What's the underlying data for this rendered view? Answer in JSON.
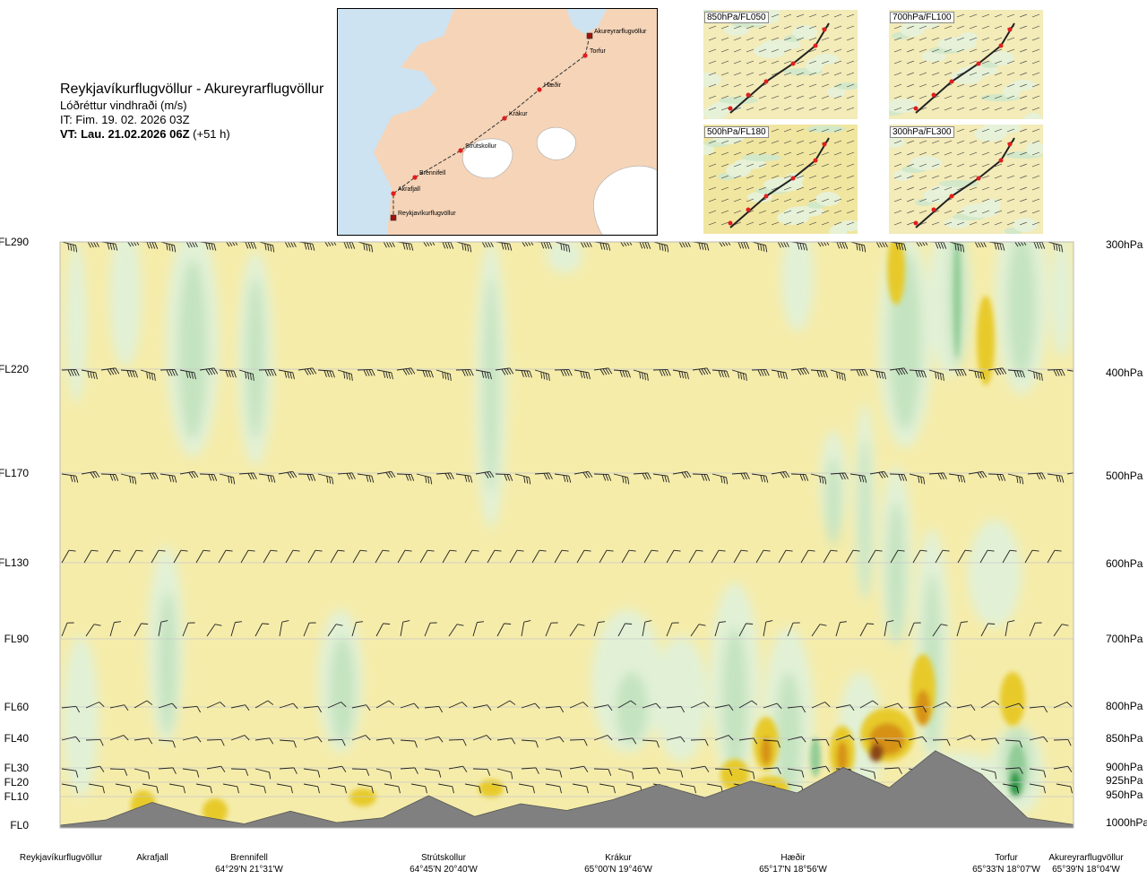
{
  "header": {
    "route": "Reykjavíkurflugvöllur - Akureyrarflugvöllur",
    "product": "Lóðréttur vindhraði (m/s)",
    "issue": "IT: Fim. 19. 02. 2026 03Z",
    "valid_bold": "VT: Lau. 21.02.2026 06Z",
    "valid_lead": "(+51 h)"
  },
  "map": {
    "waypoints": [
      {
        "name": "Akureyrarflugvöllur"
      },
      {
        "name": "Torfur"
      },
      {
        "name": "Hæðir"
      },
      {
        "name": "Krákur"
      },
      {
        "name": "Strútskollur"
      },
      {
        "name": "Brennifell"
      },
      {
        "name": "Akrafjall"
      },
      {
        "name": "Reykjavíkurflugvöllur"
      }
    ]
  },
  "mini_maps": [
    {
      "label": "850hPa/FL050"
    },
    {
      "label": "700hPa/FL100"
    },
    {
      "label": "500hPa/FL180"
    },
    {
      "label": "300hPa/FL300"
    }
  ],
  "chart_data": {
    "type": "cross-section",
    "quantity": "Lóðréttur vindhraði (m/s)",
    "left_axis_flight_levels": [
      "FL290",
      "FL220",
      "FL170",
      "FL130",
      "FL90",
      "FL60",
      "FL40",
      "FL30",
      "FL20",
      "FL10",
      "FL0"
    ],
    "right_axis_pressure_levels": [
      "300hPa",
      "400hPa",
      "500hPa",
      "600hPa",
      "700hPa",
      "800hPa",
      "850hPa",
      "900hPa",
      "925hPa",
      "950hPa",
      "1000hPa"
    ],
    "stations": [
      {
        "name": "Reykjavíkurflugvöllur",
        "coord": ""
      },
      {
        "name": "Akrafjall",
        "coord": ""
      },
      {
        "name": "Brennifell",
        "coord": "64°29'N 21°31'W"
      },
      {
        "name": "Strútskollur",
        "coord": "64°45'N 20°40'W"
      },
      {
        "name": "Krákur",
        "coord": "65°00'N 19°46'W"
      },
      {
        "name": "Hæðir",
        "coord": "65°17'N 18°56'W"
      },
      {
        "name": "Torfur",
        "coord": "65°33'N 18°07'W"
      },
      {
        "name": "Akureyrarflugvöllur",
        "coord": "65°39'N 18°04'W"
      }
    ],
    "terrain_profile": [
      40,
      120,
      380,
      180,
      60,
      250,
      80,
      150,
      480,
      170,
      360,
      260,
      420,
      650,
      450,
      700,
      520,
      900,
      600,
      1150,
      800,
      150,
      50
    ],
    "colors": {
      "background": "#f5ecaa",
      "downdraft_light": "#e2f1d6",
      "downdraft_mid": "#c4e3c0",
      "downdraft_strong": "#92cc97",
      "downdraft_max": "#2e9a48",
      "updraft_light": "#efe08c",
      "updraft_mid": "#e7ca2c",
      "updraft_strong": "#d79218",
      "updraft_max": "#8b4513",
      "terrain": "#808080",
      "sea": "#cde3f1",
      "land": "#f5d4b8"
    }
  },
  "colors": {
    "route_line": "#333333",
    "waypoint": "#e11d1d"
  }
}
